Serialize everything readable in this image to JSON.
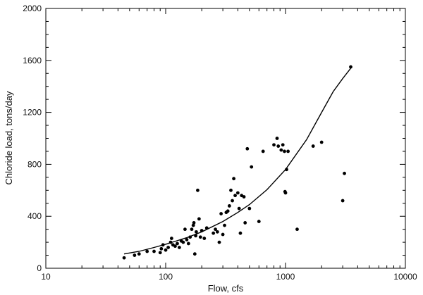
{
  "chart_data": {
    "type": "scatter",
    "title": "",
    "xlabel": "Flow, cfs",
    "ylabel": "Chloride load, tons/day",
    "x_scale": "log",
    "xlim": [
      10,
      10000
    ],
    "ylim": [
      0,
      2000
    ],
    "x_ticks": [
      10,
      100,
      1000,
      10000
    ],
    "x_tick_labels": [
      "10",
      "100",
      "1000",
      "10000"
    ],
    "y_ticks": [
      0,
      400,
      800,
      1200,
      1600,
      2000
    ],
    "y_tick_labels": [
      "0",
      "400",
      "800",
      "1200",
      "1600",
      "2000"
    ],
    "grid": false,
    "points": [
      [
        45,
        80
      ],
      [
        55,
        100
      ],
      [
        60,
        110
      ],
      [
        70,
        130
      ],
      [
        80,
        130
      ],
      [
        90,
        120
      ],
      [
        92,
        150
      ],
      [
        95,
        180
      ],
      [
        100,
        140
      ],
      [
        105,
        160
      ],
      [
        110,
        200
      ],
      [
        112,
        230
      ],
      [
        115,
        180
      ],
      [
        120,
        170
      ],
      [
        125,
        190
      ],
      [
        130,
        160
      ],
      [
        135,
        210
      ],
      [
        140,
        200
      ],
      [
        145,
        300
      ],
      [
        150,
        220
      ],
      [
        155,
        190
      ],
      [
        160,
        240
      ],
      [
        165,
        300
      ],
      [
        170,
        330
      ],
      [
        172,
        350
      ],
      [
        175,
        110
      ],
      [
        178,
        250
      ],
      [
        180,
        280
      ],
      [
        185,
        600
      ],
      [
        190,
        380
      ],
      [
        195,
        240
      ],
      [
        200,
        290
      ],
      [
        210,
        230
      ],
      [
        220,
        310
      ],
      [
        250,
        270
      ],
      [
        260,
        300
      ],
      [
        270,
        280
      ],
      [
        280,
        200
      ],
      [
        290,
        420
      ],
      [
        300,
        260
      ],
      [
        310,
        330
      ],
      [
        320,
        430
      ],
      [
        330,
        440
      ],
      [
        340,
        480
      ],
      [
        350,
        600
      ],
      [
        360,
        520
      ],
      [
        370,
        690
      ],
      [
        380,
        560
      ],
      [
        400,
        580
      ],
      [
        410,
        460
      ],
      [
        420,
        270
      ],
      [
        430,
        560
      ],
      [
        450,
        550
      ],
      [
        460,
        350
      ],
      [
        480,
        920
      ],
      [
        500,
        460
      ],
      [
        520,
        780
      ],
      [
        600,
        360
      ],
      [
        650,
        900
      ],
      [
        800,
        950
      ],
      [
        850,
        1000
      ],
      [
        870,
        940
      ],
      [
        920,
        910
      ],
      [
        950,
        950
      ],
      [
        980,
        900
      ],
      [
        990,
        590
      ],
      [
        1000,
        580
      ],
      [
        1020,
        760
      ],
      [
        1050,
        900
      ],
      [
        1250,
        300
      ],
      [
        1700,
        940
      ],
      [
        2000,
        970
      ],
      [
        3000,
        520
      ],
      [
        3100,
        730
      ],
      [
        3500,
        1550
      ]
    ],
    "fit_curve": {
      "type": "line",
      "x": [
        45,
        60,
        80,
        100,
        150,
        200,
        300,
        400,
        500,
        700,
        1000,
        1500,
        2000,
        2500,
        3000,
        3500
      ],
      "y": [
        110,
        130,
        160,
        185,
        235,
        280,
        360,
        430,
        490,
        605,
        760,
        990,
        1200,
        1360,
        1460,
        1540
      ]
    }
  }
}
